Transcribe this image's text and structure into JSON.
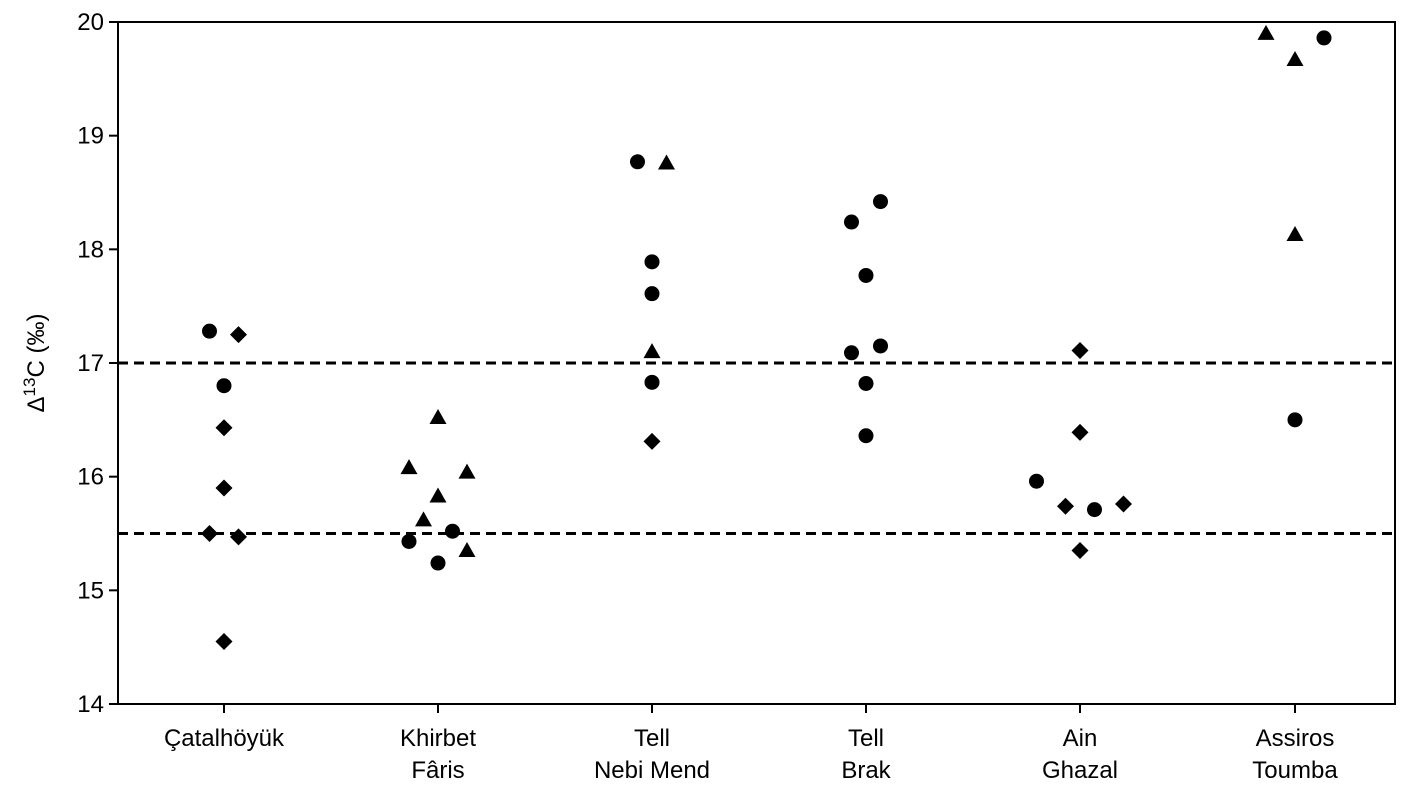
{
  "chart_data": {
    "type": "scatter",
    "ylabel_prefix": "Δ",
    "ylabel_sup": "13",
    "ylabel_suffix": "C (‰)",
    "ylim": [
      14,
      20
    ],
    "yticks": [
      14,
      15,
      16,
      17,
      18,
      19,
      20
    ],
    "categories": [
      [
        "Çatalhöyük"
      ],
      [
        "Khirbet",
        "Fâris"
      ],
      [
        "Tell",
        "Nebi Mend"
      ],
      [
        "Tell",
        "Brak"
      ],
      [
        "Ain",
        "Ghazal"
      ],
      [
        "Assiros",
        "Toumba"
      ]
    ],
    "reference_lines": [
      17.0,
      15.5
    ],
    "grid": false,
    "legend": "none",
    "marker_color": "#000000",
    "points": [
      {
        "cat": 0,
        "offset": -1,
        "y": 17.28,
        "marker": "circle"
      },
      {
        "cat": 0,
        "offset": 0,
        "y": 16.8,
        "marker": "circle"
      },
      {
        "cat": 0,
        "offset": 1,
        "y": 17.25,
        "marker": "diamond"
      },
      {
        "cat": 0,
        "offset": 0,
        "y": 16.43,
        "marker": "diamond"
      },
      {
        "cat": 0,
        "offset": 0,
        "y": 15.9,
        "marker": "diamond"
      },
      {
        "cat": 0,
        "offset": -1,
        "y": 15.5,
        "marker": "diamond"
      },
      {
        "cat": 0,
        "offset": 1,
        "y": 15.47,
        "marker": "diamond"
      },
      {
        "cat": 0,
        "offset": 0,
        "y": 14.55,
        "marker": "diamond"
      },
      {
        "cat": 1,
        "offset": -2,
        "y": 16.08,
        "marker": "triangle"
      },
      {
        "cat": 1,
        "offset": 0,
        "y": 16.52,
        "marker": "triangle"
      },
      {
        "cat": 1,
        "offset": 2,
        "y": 16.04,
        "marker": "triangle"
      },
      {
        "cat": 1,
        "offset": 0,
        "y": 15.83,
        "marker": "triangle"
      },
      {
        "cat": 1,
        "offset": -1,
        "y": 15.62,
        "marker": "triangle"
      },
      {
        "cat": 1,
        "offset": 2,
        "y": 15.35,
        "marker": "triangle"
      },
      {
        "cat": 1,
        "offset": -2,
        "y": 15.43,
        "marker": "circle"
      },
      {
        "cat": 1,
        "offset": 1,
        "y": 15.52,
        "marker": "circle"
      },
      {
        "cat": 1,
        "offset": 0,
        "y": 15.24,
        "marker": "circle"
      },
      {
        "cat": 2,
        "offset": -1,
        "y": 18.77,
        "marker": "circle"
      },
      {
        "cat": 2,
        "offset": 1,
        "y": 18.76,
        "marker": "triangle"
      },
      {
        "cat": 2,
        "offset": 0,
        "y": 17.89,
        "marker": "circle"
      },
      {
        "cat": 2,
        "offset": 0,
        "y": 17.61,
        "marker": "circle"
      },
      {
        "cat": 2,
        "offset": 0,
        "y": 17.1,
        "marker": "triangle"
      },
      {
        "cat": 2,
        "offset": 0,
        "y": 16.83,
        "marker": "circle"
      },
      {
        "cat": 2,
        "offset": 0,
        "y": 16.31,
        "marker": "diamond"
      },
      {
        "cat": 3,
        "offset": -1,
        "y": 18.24,
        "marker": "circle"
      },
      {
        "cat": 3,
        "offset": 1,
        "y": 18.42,
        "marker": "circle"
      },
      {
        "cat": 3,
        "offset": 0,
        "y": 17.77,
        "marker": "circle"
      },
      {
        "cat": 3,
        "offset": -1,
        "y": 17.09,
        "marker": "circle"
      },
      {
        "cat": 3,
        "offset": 1,
        "y": 17.15,
        "marker": "circle"
      },
      {
        "cat": 3,
        "offset": 0,
        "y": 16.82,
        "marker": "circle"
      },
      {
        "cat": 3,
        "offset": 0,
        "y": 16.36,
        "marker": "circle"
      },
      {
        "cat": 4,
        "offset": 0,
        "y": 17.11,
        "marker": "diamond"
      },
      {
        "cat": 4,
        "offset": 0,
        "y": 16.39,
        "marker": "diamond"
      },
      {
        "cat": 4,
        "offset": -3,
        "y": 15.96,
        "marker": "circle"
      },
      {
        "cat": 4,
        "offset": -1,
        "y": 15.74,
        "marker": "diamond"
      },
      {
        "cat": 4,
        "offset": 1,
        "y": 15.71,
        "marker": "circle"
      },
      {
        "cat": 4,
        "offset": 3,
        "y": 15.76,
        "marker": "diamond"
      },
      {
        "cat": 4,
        "offset": 0,
        "y": 15.35,
        "marker": "diamond"
      },
      {
        "cat": 5,
        "offset": -2,
        "y": 19.9,
        "marker": "triangle"
      },
      {
        "cat": 5,
        "offset": 0,
        "y": 19.67,
        "marker": "triangle"
      },
      {
        "cat": 5,
        "offset": 2,
        "y": 19.86,
        "marker": "circle"
      },
      {
        "cat": 5,
        "offset": 0,
        "y": 18.13,
        "marker": "triangle"
      },
      {
        "cat": 5,
        "offset": 0,
        "y": 16.5,
        "marker": "circle"
      }
    ]
  }
}
